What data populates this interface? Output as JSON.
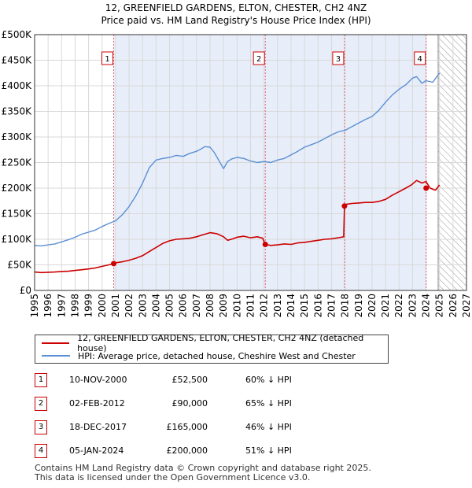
{
  "header": {
    "title_line1": "12, GREENFIELD GARDENS, ELTON, CHESTER, CH2 4NZ",
    "title_line2": "Price paid vs. HM Land Registry's House Price Index (HPI)"
  },
  "colors": {
    "property_line": "#cc0000",
    "hpi_line": "#5b8fd4",
    "owned_band": "#e8eef9",
    "forecast_hatch": "#999999",
    "grid": "#d8d8d8",
    "marker_dash": "#e06070"
  },
  "legend": {
    "property_label": "12, GREENFIELD GARDENS, ELTON, CHESTER, CH2 4NZ (detached house)",
    "hpi_label": "HPI: Average price, detached house, Cheshire West and Chester"
  },
  "transactions": [
    {
      "num": "1",
      "date": "10-NOV-2000",
      "price": "£52,500",
      "hpi": "60% ↓ HPI"
    },
    {
      "num": "2",
      "date": "02-FEB-2012",
      "price": "£90,000",
      "hpi": "65% ↓ HPI"
    },
    {
      "num": "3",
      "date": "18-DEC-2017",
      "price": "£165,000",
      "hpi": "46% ↓ HPI"
    },
    {
      "num": "4",
      "date": "05-JAN-2024",
      "price": "£200,000",
      "hpi": "51% ↓ HPI"
    }
  ],
  "footer": {
    "line1": "Contains HM Land Registry data © Crown copyright and database right 2025.",
    "line2": "This data is licensed under the Open Government Licence v3.0."
  },
  "chart_data": {
    "type": "line",
    "xlim": [
      1995,
      2027
    ],
    "ylim": [
      0,
      500000
    ],
    "x_ticks": [
      1995,
      1996,
      1997,
      1998,
      1999,
      2000,
      2001,
      2002,
      2003,
      2004,
      2005,
      2006,
      2007,
      2008,
      2009,
      2010,
      2011,
      2012,
      2013,
      2014,
      2015,
      2016,
      2017,
      2018,
      2019,
      2020,
      2021,
      2022,
      2023,
      2024,
      2025,
      2026,
      2027
    ],
    "x_tick_labels": [
      "1995",
      "1996",
      "1997",
      "1998",
      "1999",
      "2000",
      "2001",
      "2002",
      "2003",
      "2004",
      "2005",
      "2006",
      "2007",
      "2008",
      "2009",
      "2010",
      "2011",
      "2012",
      "2013",
      "2014",
      "2015",
      "2016",
      "2017",
      "2018",
      "2019",
      "2020",
      "2021",
      "2022",
      "2023",
      "2024",
      "2025",
      "2026",
      "2027"
    ],
    "y_ticks": [
      0,
      50000,
      100000,
      150000,
      200000,
      250000,
      300000,
      350000,
      400000,
      450000,
      500000
    ],
    "y_tick_labels": [
      "£0",
      "£50K",
      "£100K",
      "£150K",
      "£200K",
      "£250K",
      "£300K",
      "£350K",
      "£400K",
      "£450K",
      "£500K"
    ],
    "forecast_start": 2024.9,
    "series": [
      {
        "name": "12, GREENFIELD GARDENS, ELTON, CHESTER, CH2 4NZ (detached house)",
        "x": [
          1995.0,
          1995.5,
          1996.0,
          1996.5,
          1997.0,
          1997.5,
          1998.0,
          1998.5,
          1999.0,
          1999.5,
          2000.0,
          2000.5,
          2000.86,
          2001.0,
          2001.5,
          2002.0,
          2002.5,
          2003.0,
          2003.5,
          2004.0,
          2004.5,
          2005.0,
          2005.5,
          2006.0,
          2006.5,
          2007.0,
          2007.5,
          2008.0,
          2008.5,
          2009.0,
          2009.3,
          2009.7,
          2010.0,
          2010.5,
          2011.0,
          2011.5,
          2011.9,
          2012.09,
          2012.5,
          2013.0,
          2013.5,
          2014.0,
          2014.5,
          2015.0,
          2015.5,
          2016.0,
          2016.5,
          2017.0,
          2017.5,
          2017.9,
          2017.96,
          2018.0,
          2018.5,
          2019.0,
          2019.5,
          2020.0,
          2020.5,
          2021.0,
          2021.5,
          2022.0,
          2022.5,
          2022.9,
          2023.3,
          2023.7,
          2024.0,
          2024.3,
          2024.7,
          2025.0
        ],
        "y": [
          36000,
          35000,
          35500,
          36000,
          37000,
          37500,
          39000,
          40500,
          42000,
          44000,
          47000,
          50000,
          52500,
          54000,
          56000,
          59000,
          63000,
          68000,
          76000,
          84000,
          92000,
          97000,
          100000,
          101000,
          102000,
          105000,
          109000,
          113000,
          111000,
          105000,
          98000,
          101000,
          104000,
          106000,
          103000,
          105000,
          102000,
          90000,
          88000,
          89000,
          91000,
          90000,
          93000,
          94000,
          96000,
          98000,
          100000,
          101000,
          103000,
          105000,
          165000,
          168000,
          170000,
          171000,
          172000,
          172000,
          174000,
          178000,
          186000,
          193000,
          200000,
          206000,
          215000,
          210000,
          213000,
          200000,
          196000,
          206000
        ]
      },
      {
        "name": "HPI: Average price, detached house, Cheshire West and Chester",
        "x": [
          1995.0,
          1995.5,
          1996.0,
          1996.5,
          1997.0,
          1997.5,
          1998.0,
          1998.5,
          1999.0,
          1999.5,
          2000.0,
          2000.5,
          2001.0,
          2001.5,
          2002.0,
          2002.5,
          2003.0,
          2003.5,
          2004.0,
          2004.5,
          2005.0,
          2005.5,
          2006.0,
          2006.5,
          2007.0,
          2007.3,
          2007.6,
          2008.0,
          2008.3,
          2008.7,
          2009.0,
          2009.3,
          2009.6,
          2010.0,
          2010.5,
          2011.0,
          2011.5,
          2012.0,
          2012.5,
          2013.0,
          2013.5,
          2014.0,
          2014.5,
          2015.0,
          2015.5,
          2016.0,
          2016.5,
          2017.0,
          2017.5,
          2018.0,
          2018.5,
          2019.0,
          2019.5,
          2020.0,
          2020.5,
          2021.0,
          2021.5,
          2022.0,
          2022.5,
          2023.0,
          2023.3,
          2023.7,
          2024.0,
          2024.5,
          2025.0
        ],
        "y": [
          88000,
          87000,
          89000,
          91000,
          95000,
          99000,
          104000,
          110000,
          114000,
          118000,
          125000,
          131000,
          136000,
          148000,
          164000,
          185000,
          210000,
          240000,
          255000,
          258000,
          260000,
          264000,
          262000,
          268000,
          272000,
          276000,
          281000,
          280000,
          270000,
          252000,
          238000,
          252000,
          257000,
          260000,
          258000,
          253000,
          250000,
          252000,
          250000,
          255000,
          258000,
          265000,
          272000,
          280000,
          285000,
          290000,
          297000,
          304000,
          310000,
          313000,
          320000,
          327000,
          334000,
          340000,
          352000,
          368000,
          382000,
          393000,
          402000,
          415000,
          418000,
          405000,
          410000,
          407000,
          425000
        ]
      }
    ],
    "sale_markers": [
      {
        "label": "1",
        "x": 2000.86,
        "y": 52500
      },
      {
        "label": "2",
        "x": 2012.09,
        "y": 90000
      },
      {
        "label": "3",
        "x": 2017.96,
        "y": 165000
      },
      {
        "label": "4",
        "x": 2024.01,
        "y": 200000
      }
    ]
  }
}
